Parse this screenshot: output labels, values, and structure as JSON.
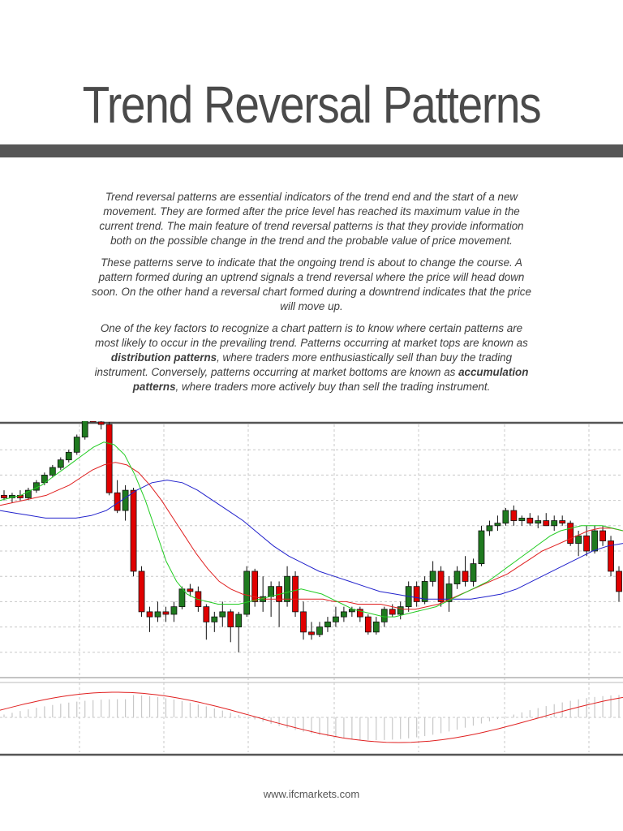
{
  "page": {
    "title": "Trend Reversal Patterns",
    "footer_url": "www.ifcmarkets.com"
  },
  "content": {
    "p1": "Trend reversal patterns are essential indicators of the trend end and the start of a new movement. They are formed after the price level has reached its maximum value in the current trend.  The main feature of trend reversal patterns is that they provide information both on the possible change in the trend and the probable value of price movement.",
    "p2": "These patterns serve to indicate that the ongoing trend is about to change the course. A pattern formed during an uptrend signals a trend reversal where the price will head down soon. On the other hand a reversal chart formed during a downtrend indicates that the price will move up.",
    "p3_a": "One of the key factors to recognize a chart pattern is to know where certain patterns are most likely to occur in the prevailing trend. Patterns occurring at market tops are known as ",
    "p3_b1": "distribution patterns",
    "p3_c": ", where traders more enthusiastically sell than buy the trading instrument. Conversely, patterns occurring at market bottoms are known as ",
    "p3_b2": "accumulation patterns",
    "p3_d": ", where traders more actively buy than sell the trading instrument."
  },
  "colors": {
    "bull": "#1f7a1f",
    "bear": "#e00000",
    "ma_fast": "#22cc22",
    "ma_mid": "#e02020",
    "ma_slow": "#2222cc",
    "osc_line": "#e02020",
    "hist": "#c8c8c8",
    "grid": "#c8c8c8"
  },
  "chart_data": {
    "type": "candlestick",
    "title": "",
    "xlabel": "",
    "ylabel": "",
    "ylim": [
      0,
      100
    ],
    "grid": true,
    "candles": [
      [
        72,
        74,
        70,
        71
      ],
      [
        71,
        73,
        69,
        72
      ],
      [
        72,
        74,
        70,
        71
      ],
      [
        71,
        75,
        70,
        74
      ],
      [
        74,
        78,
        73,
        77
      ],
      [
        77,
        81,
        76,
        80
      ],
      [
        80,
        84,
        79,
        83
      ],
      [
        83,
        87,
        82,
        86
      ],
      [
        86,
        90,
        85,
        89
      ],
      [
        89,
        96,
        88,
        95
      ],
      [
        95,
        104,
        94,
        103
      ],
      [
        103,
        105,
        101,
        101
      ],
      [
        101,
        103,
        98,
        100
      ],
      [
        100,
        101,
        72,
        73
      ],
      [
        73,
        78,
        65,
        66
      ],
      [
        66,
        76,
        62,
        74
      ],
      [
        74,
        75,
        40,
        42
      ],
      [
        42,
        44,
        24,
        26
      ],
      [
        26,
        28,
        18,
        24
      ],
      [
        24,
        30,
        22,
        26
      ],
      [
        26,
        28,
        22,
        25
      ],
      [
        25,
        30,
        22,
        28
      ],
      [
        28,
        36,
        27,
        35
      ],
      [
        35,
        37,
        32,
        34
      ],
      [
        34,
        36,
        26,
        28
      ],
      [
        28,
        29,
        15,
        22
      ],
      [
        22,
        26,
        18,
        24
      ],
      [
        24,
        30,
        20,
        26
      ],
      [
        26,
        27,
        14,
        20
      ],
      [
        20,
        26,
        10,
        25
      ],
      [
        25,
        44,
        24,
        42
      ],
      [
        42,
        43,
        28,
        30
      ],
      [
        30,
        40,
        26,
        32
      ],
      [
        32,
        38,
        24,
        36
      ],
      [
        36,
        38,
        20,
        30
      ],
      [
        30,
        44,
        28,
        40
      ],
      [
        40,
        42,
        24,
        26
      ],
      [
        26,
        30,
        15,
        18
      ],
      [
        18,
        22,
        15,
        17
      ],
      [
        17,
        22,
        16,
        20
      ],
      [
        20,
        24,
        18,
        22
      ],
      [
        22,
        28,
        20,
        24
      ],
      [
        24,
        28,
        22,
        26
      ],
      [
        26,
        28,
        24,
        27
      ],
      [
        27,
        28,
        22,
        24
      ],
      [
        24,
        25,
        17,
        18
      ],
      [
        18,
        24,
        17,
        22
      ],
      [
        22,
        28,
        20,
        27
      ],
      [
        27,
        29,
        24,
        25
      ],
      [
        25,
        30,
        23,
        28
      ],
      [
        28,
        38,
        26,
        36
      ],
      [
        36,
        38,
        28,
        30
      ],
      [
        30,
        40,
        29,
        38
      ],
      [
        38,
        46,
        36,
        42
      ],
      [
        42,
        44,
        28,
        30
      ],
      [
        30,
        40,
        26,
        37
      ],
      [
        37,
        44,
        35,
        42
      ],
      [
        42,
        48,
        36,
        38
      ],
      [
        38,
        47,
        36,
        45
      ],
      [
        45,
        60,
        44,
        58
      ],
      [
        58,
        62,
        56,
        60
      ],
      [
        60,
        64,
        58,
        61
      ],
      [
        61,
        67,
        60,
        66
      ],
      [
        66,
        68,
        60,
        62
      ],
      [
        62,
        64,
        60,
        63
      ],
      [
        63,
        65,
        60,
        61
      ],
      [
        61,
        64,
        59,
        62
      ],
      [
        62,
        65,
        60,
        60
      ],
      [
        60,
        64,
        58,
        62
      ],
      [
        62,
        64,
        60,
        61
      ],
      [
        61,
        62,
        52,
        53
      ],
      [
        53,
        58,
        48,
        56
      ],
      [
        56,
        60,
        48,
        50
      ],
      [
        50,
        60,
        49,
        58
      ],
      [
        58,
        60,
        52,
        54
      ],
      [
        54,
        56,
        40,
        42
      ],
      [
        42,
        44,
        30,
        34
      ]
    ],
    "ma_fast": [
      70,
      71,
      72,
      74,
      76,
      79,
      82,
      85,
      88,
      91,
      93,
      92,
      88,
      80,
      70,
      58,
      46,
      38,
      33,
      31,
      30,
      29,
      29,
      29,
      30,
      31,
      32,
      33,
      34,
      35,
      34,
      33,
      31,
      29,
      27,
      26,
      25,
      24,
      24,
      25,
      26,
      27,
      28,
      30,
      32,
      34,
      36,
      38,
      41,
      44,
      47,
      50,
      53,
      56,
      58,
      59,
      60,
      60,
      60,
      59,
      58
    ],
    "ma_mid": [
      68,
      69,
      70,
      71,
      72,
      74,
      76,
      79,
      82,
      84,
      85,
      84,
      81,
      76,
      70,
      63,
      56,
      49,
      43,
      38,
      35,
      33,
      32,
      31,
      31,
      31,
      31,
      31,
      31,
      30,
      30,
      29,
      29,
      29,
      28,
      27,
      27,
      28,
      29,
      31,
      33,
      35,
      37,
      39,
      41,
      44,
      47,
      50,
      52,
      54,
      56,
      58,
      59,
      59,
      58
    ],
    "ma_slow": [
      66,
      65,
      64,
      63,
      63,
      63,
      64,
      66,
      70,
      74,
      77,
      78,
      77,
      74,
      70,
      66,
      62,
      57,
      52,
      48,
      45,
      42,
      40,
      38,
      36,
      34,
      33,
      32,
      31,
      31,
      31,
      31,
      32,
      33,
      35,
      38,
      41,
      44,
      47,
      50,
      52,
      53
    ]
  }
}
